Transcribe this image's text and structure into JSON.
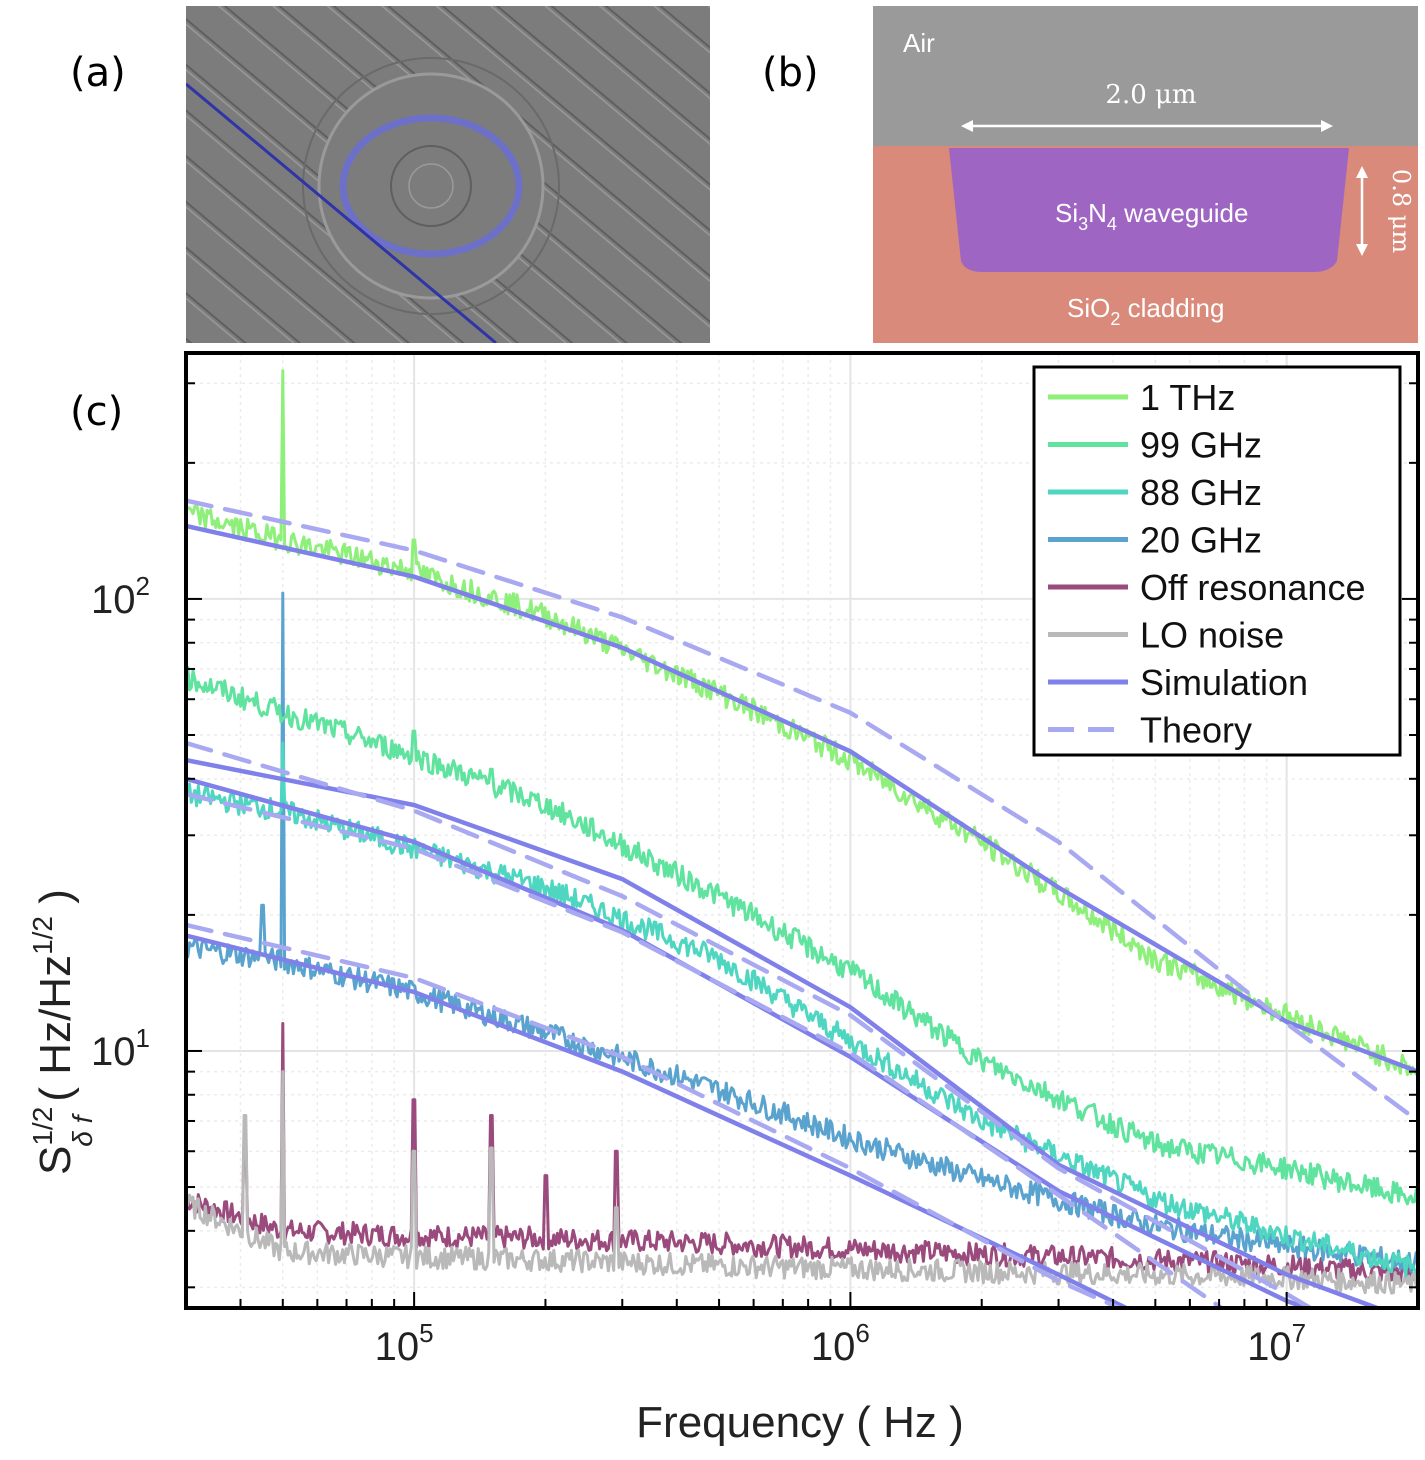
{
  "panels": {
    "a": {
      "label": "(a)"
    },
    "b": {
      "label": "(b)",
      "air": "Air",
      "width_dim": "2.0 μm",
      "height_dim": "0.8 μm",
      "waveguide_pre": "Si",
      "waveguide_sub1": "3",
      "waveguide_mid": "N",
      "waveguide_sub2": "4",
      "waveguide_post": " waveguide",
      "cladding_pre": "SiO",
      "cladding_sub": "2",
      "cladding_post": " cladding"
    },
    "c": {
      "label": "(c)"
    }
  },
  "colors": {
    "thz1": "#8ef07a",
    "ghz99": "#5fe39e",
    "ghz88": "#4fd6c0",
    "ghz20": "#5aa3cf",
    "off": "#9a4a7c",
    "lo": "#b9b9b9",
    "sim": "#8080ea",
    "theory": "#a9a9f2",
    "waveguide": "#9a62c8",
    "cladding": "#d98a7a",
    "air": "#9a9a9a",
    "bus": "#2f35a8",
    "ring": "#6b6fd0"
  },
  "chart_data": {
    "type": "line",
    "xlabel": "Frequency ( Hz )",
    "ylabel_main": "S",
    "ylabel_sup": "1/2",
    "ylabel_sub": "δ f",
    "ylabel_unit_open": "( Hz/Hz",
    "ylabel_unit_sup": "1/2",
    "ylabel_unit_close": " )",
    "xscale": "log",
    "yscale": "log",
    "xlim": [
      30000,
      20000000
    ],
    "ylim": [
      2.7,
      350
    ],
    "grid": true,
    "xticks": [
      {
        "value": 100000,
        "base": "10",
        "exp": "5"
      },
      {
        "value": 1000000,
        "base": "10",
        "exp": "6"
      },
      {
        "value": 10000000,
        "base": "10",
        "exp": "7"
      }
    ],
    "yticks": [
      {
        "value": 10,
        "base": "10",
        "exp": "1"
      },
      {
        "value": 100,
        "base": "10",
        "exp": "2"
      }
    ],
    "legend_position": "top-right",
    "series": [
      {
        "name": "1 THz",
        "kind": "measured",
        "color_key": "thz1",
        "points": [
          [
            30000,
            155
          ],
          [
            50000,
            135
          ],
          [
            100000,
            115
          ],
          [
            200000,
            92
          ],
          [
            500000,
            62
          ],
          [
            1000000,
            44
          ],
          [
            2000000,
            29
          ],
          [
            5000000,
            16
          ],
          [
            10000000,
            12
          ],
          [
            20000000,
            9
          ]
        ],
        "spikes": [
          [
            50000,
            320
          ],
          [
            100000,
            135
          ]
        ]
      },
      {
        "name": "99 GHz",
        "kind": "measured",
        "color_key": "ghz99",
        "points": [
          [
            30000,
            67
          ],
          [
            50000,
            56
          ],
          [
            100000,
            45
          ],
          [
            200000,
            35
          ],
          [
            500000,
            22
          ],
          [
            1000000,
            15
          ],
          [
            2000000,
            9.5
          ],
          [
            5000000,
            6.2
          ],
          [
            10000000,
            5.5
          ],
          [
            20000000,
            4.7
          ]
        ],
        "spikes": [
          [
            100000,
            51
          ],
          [
            150000,
            42
          ]
        ]
      },
      {
        "name": "88 GHz",
        "kind": "measured",
        "color_key": "ghz88",
        "points": [
          [
            30000,
            37
          ],
          [
            50000,
            34
          ],
          [
            100000,
            28
          ],
          [
            200000,
            23
          ],
          [
            500000,
            16
          ],
          [
            1000000,
            10.5
          ],
          [
            2000000,
            7
          ],
          [
            5000000,
            4.7
          ],
          [
            10000000,
            3.9
          ],
          [
            20000000,
            3.3
          ]
        ],
        "spikes": [
          [
            50000,
            48
          ]
        ]
      },
      {
        "name": "20 GHz",
        "kind": "measured",
        "color_key": "ghz20",
        "points": [
          [
            30000,
            17
          ],
          [
            50000,
            15.8
          ],
          [
            100000,
            13.5
          ],
          [
            200000,
            11
          ],
          [
            500000,
            8.2
          ],
          [
            1000000,
            6.4
          ],
          [
            2000000,
            5.2
          ],
          [
            5000000,
            4.1
          ],
          [
            10000000,
            3.7
          ],
          [
            20000000,
            3.4
          ]
        ],
        "spikes": [
          [
            50000,
            103
          ],
          [
            45000,
            21
          ]
        ]
      },
      {
        "name": "Off resonance",
        "kind": "measured",
        "color_key": "off",
        "points": [
          [
            30000,
            4.7
          ],
          [
            50000,
            4.0
          ],
          [
            100000,
            3.9
          ],
          [
            200000,
            3.85
          ],
          [
            500000,
            3.75
          ],
          [
            1000000,
            3.65
          ],
          [
            2000000,
            3.55
          ],
          [
            5000000,
            3.45
          ],
          [
            10000000,
            3.35
          ],
          [
            20000000,
            3.2
          ]
        ],
        "spikes": [
          [
            50000,
            11.5
          ],
          [
            100000,
            7.8
          ],
          [
            150000,
            7.2
          ],
          [
            200000,
            5.3
          ],
          [
            290000,
            6.0
          ],
          [
            41000,
            6.5
          ]
        ]
      },
      {
        "name": "LO noise",
        "kind": "measured",
        "color_key": "lo",
        "points": [
          [
            30000,
            4.6
          ],
          [
            50000,
            3.6
          ],
          [
            100000,
            3.5
          ],
          [
            200000,
            3.45
          ],
          [
            500000,
            3.35
          ],
          [
            1000000,
            3.3
          ],
          [
            2000000,
            3.25
          ],
          [
            5000000,
            3.2
          ],
          [
            10000000,
            3.15
          ],
          [
            20000000,
            3.05
          ]
        ],
        "spikes": [
          [
            50000,
            9.0
          ],
          [
            41000,
            7.2
          ],
          [
            100000,
            6.0
          ],
          [
            150000,
            6.1
          ],
          [
            290000,
            4.5
          ]
        ]
      },
      {
        "name": "Simulation",
        "kind": "fit",
        "color_key": "sim",
        "curves": [
          [
            [
              30000,
              145
            ],
            [
              100000,
              112
            ],
            [
              300000,
              78
            ],
            [
              1000000,
              46
            ],
            [
              3000000,
              23
            ],
            [
              10000000,
              11.6
            ],
            [
              20000000,
              9.0
            ]
          ],
          [
            [
              30000,
              44
            ],
            [
              100000,
              35
            ],
            [
              300000,
              24
            ],
            [
              1000000,
              12.5
            ],
            [
              3000000,
              5.6
            ],
            [
              10000000,
              3.2
            ],
            [
              20000000,
              2.5
            ]
          ],
          [
            [
              30000,
              40
            ],
            [
              100000,
              29
            ],
            [
              300000,
              18.5
            ],
            [
              1000000,
              9.7
            ],
            [
              3000000,
              4.9
            ],
            [
              10000000,
              2.8
            ],
            [
              20000000,
              2.2
            ]
          ],
          [
            [
              30000,
              18
            ],
            [
              100000,
              13.5
            ],
            [
              300000,
              9.0
            ],
            [
              1000000,
              5.3
            ],
            [
              3000000,
              3.2
            ],
            [
              6000000,
              2.3
            ]
          ]
        ]
      },
      {
        "name": "Theory",
        "kind": "fit",
        "color_key": "theory",
        "curves": [
          [
            [
              30000,
              165
            ],
            [
              100000,
              128
            ],
            [
              300000,
              91
            ],
            [
              1000000,
              56
            ],
            [
              3000000,
              29
            ],
            [
              10000000,
              11.5
            ],
            [
              20000000,
              7.0
            ]
          ],
          [
            [
              30000,
              48
            ],
            [
              100000,
              34
            ],
            [
              300000,
              22
            ],
            [
              1000000,
              12
            ],
            [
              3000000,
              5.5
            ],
            [
              10000000,
              2.9
            ],
            [
              15000000,
              2.3
            ]
          ],
          [
            [
              30000,
              37
            ],
            [
              100000,
              28
            ],
            [
              300000,
              18.3
            ],
            [
              1000000,
              9.9
            ],
            [
              3000000,
              4.8
            ],
            [
              7500000,
              2.6
            ],
            [
              12000000,
              2.2
            ]
          ],
          [
            [
              30000,
              19
            ],
            [
              100000,
              14.5
            ],
            [
              300000,
              9.7
            ],
            [
              1000000,
              5.5
            ],
            [
              3000000,
              3.1
            ],
            [
              6000000,
              2.3
            ]
          ]
        ]
      }
    ]
  }
}
